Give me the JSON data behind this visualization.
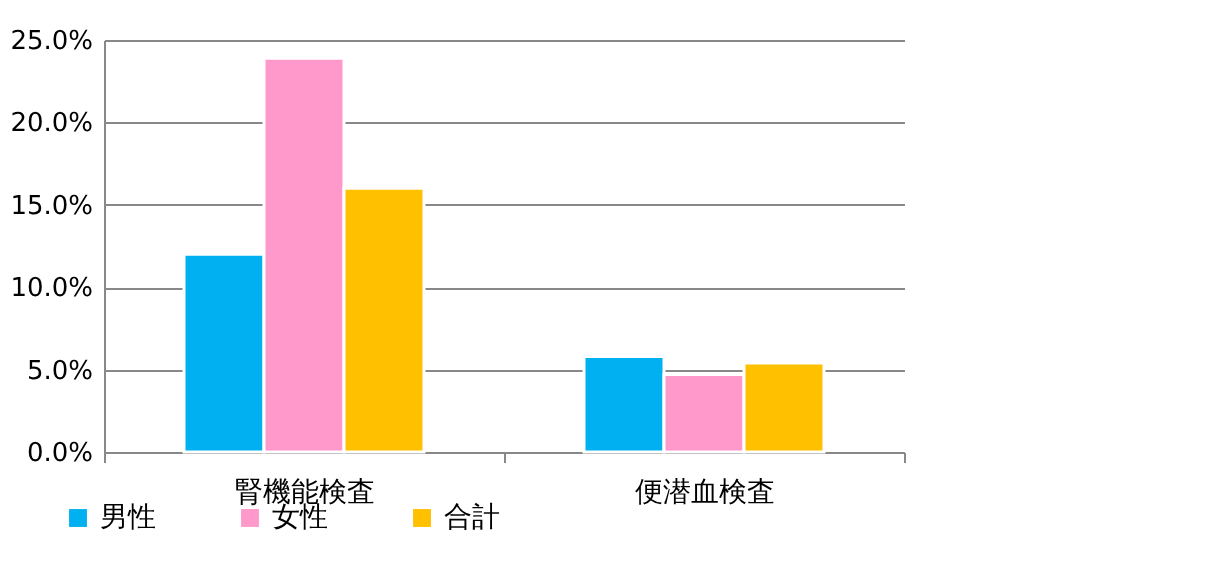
{
  "chart_data": {
    "type": "bar",
    "categories": [
      "腎機能検査",
      "便潜血検査"
    ],
    "series": [
      {
        "name": "男性",
        "color": "#00b0f0",
        "values": [
          12.0,
          5.8
        ]
      },
      {
        "name": "女性",
        "color": "#ff99cc",
        "values": [
          23.9,
          4.7
        ]
      },
      {
        "name": "合計",
        "color": "#ffc000",
        "values": [
          16.0,
          5.4
        ]
      }
    ],
    "ylim": [
      0,
      25
    ],
    "yticks": [
      {
        "value": 0,
        "label": "0.0%"
      },
      {
        "value": 5,
        "label": "5.0%"
      },
      {
        "value": 10,
        "label": "10.0%"
      },
      {
        "value": 15,
        "label": "15.0%"
      },
      {
        "value": 20,
        "label": "20.0%"
      },
      {
        "value": 25,
        "label": "25.0%"
      }
    ],
    "grid": "y",
    "legend": "bottom left"
  }
}
